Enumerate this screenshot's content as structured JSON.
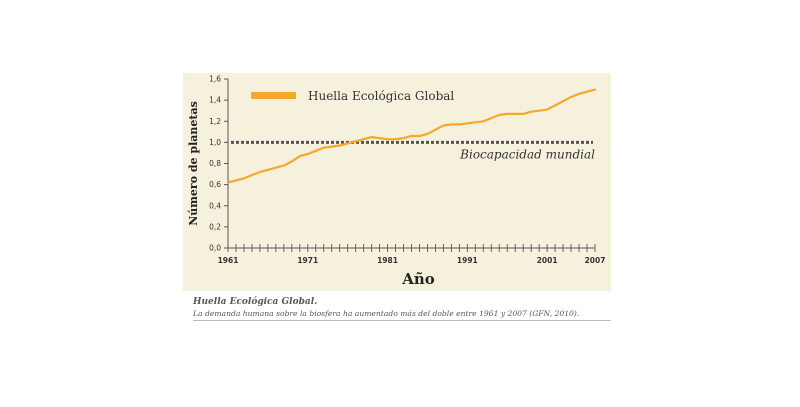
{
  "chart_data": {
    "type": "line",
    "xlabel": "Año",
    "ylabel": "Número de planetas",
    "xlim": [
      1961,
      2007
    ],
    "ylim": [
      0,
      1.6
    ],
    "x_ticks": [
      1961,
      1971,
      1981,
      1991,
      2001,
      2007
    ],
    "y_ticks": [
      "0,0",
      "0,2",
      "0,4",
      "0,6",
      "0,8",
      "1,0",
      "1,2",
      "1,4",
      "1,6"
    ],
    "legend_position": "top-left",
    "grid": false,
    "series": [
      {
        "name": "Huella Ecológica Global",
        "color": "#f4a92a",
        "style": "solid",
        "x": [
          1961,
          1962,
          1963,
          1964,
          1965,
          1966,
          1967,
          1968,
          1969,
          1970,
          1971,
          1972,
          1973,
          1974,
          1975,
          1976,
          1977,
          1978,
          1979,
          1980,
          1981,
          1982,
          1983,
          1984,
          1985,
          1986,
          1987,
          1988,
          1989,
          1990,
          1991,
          1992,
          1993,
          1994,
          1995,
          1996,
          1997,
          1998,
          1999,
          2000,
          2001,
          2002,
          2003,
          2004,
          2005,
          2006,
          2007
        ],
        "values": [
          0.62,
          0.64,
          0.66,
          0.69,
          0.72,
          0.74,
          0.76,
          0.78,
          0.82,
          0.87,
          0.89,
          0.92,
          0.95,
          0.96,
          0.97,
          0.99,
          1.01,
          1.03,
          1.05,
          1.04,
          1.03,
          1.03,
          1.04,
          1.06,
          1.06,
          1.08,
          1.12,
          1.16,
          1.17,
          1.17,
          1.18,
          1.19,
          1.2,
          1.23,
          1.26,
          1.27,
          1.27,
          1.27,
          1.29,
          1.3,
          1.31,
          1.35,
          1.39,
          1.43,
          1.46,
          1.48,
          1.5
        ]
      }
    ],
    "reference_line": {
      "label": "Biocapacidad mundial",
      "value": 1.0,
      "color": "#555555",
      "style": "dotted"
    }
  },
  "caption": {
    "title": "Huella Ecológica Global.",
    "text": "La demanda humana sobre la biosfera ha aumentado más del doble entre 1961 y 2007 (GFN, 2010)."
  }
}
